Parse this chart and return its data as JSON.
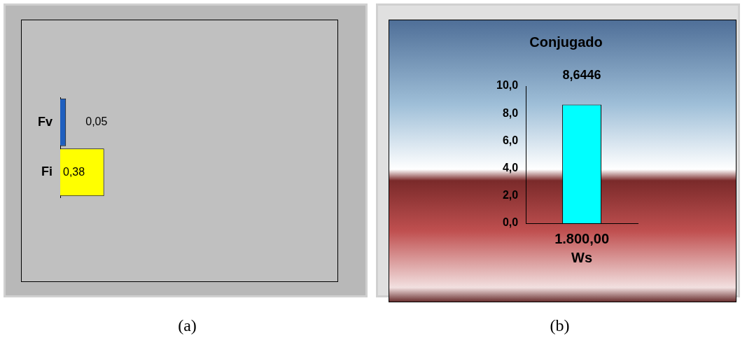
{
  "chart_data": [
    {
      "type": "bar",
      "orientation": "horizontal",
      "categories": [
        "Fv",
        "Fi"
      ],
      "values": [
        0.05,
        0.38
      ],
      "colors": [
        "#1f5fbf",
        "#ffff00"
      ],
      "value_labels": [
        "0,05",
        "0,38"
      ],
      "grid": false,
      "legend": false,
      "tick_labels": "y",
      "annotations": [
        "(a)"
      ]
    },
    {
      "type": "bar",
      "title": "Conjugado",
      "xlabel": "Ws",
      "categories": [
        "1.800,00"
      ],
      "values": [
        8.6446
      ],
      "value_labels": [
        "8,6446"
      ],
      "color": "#00ffff",
      "ylim": [
        0,
        10
      ],
      "yticks": [
        {
          "value": 0,
          "label": "0,0"
        },
        {
          "value": 2,
          "label": "2,0"
        },
        {
          "value": 4,
          "label": "4,0"
        },
        {
          "value": 6,
          "label": "6,0"
        },
        {
          "value": 8,
          "label": "8,0"
        },
        {
          "value": 10,
          "label": "10,0"
        }
      ],
      "grid": false,
      "legend": false,
      "annotations": [
        "(b)"
      ]
    }
  ]
}
